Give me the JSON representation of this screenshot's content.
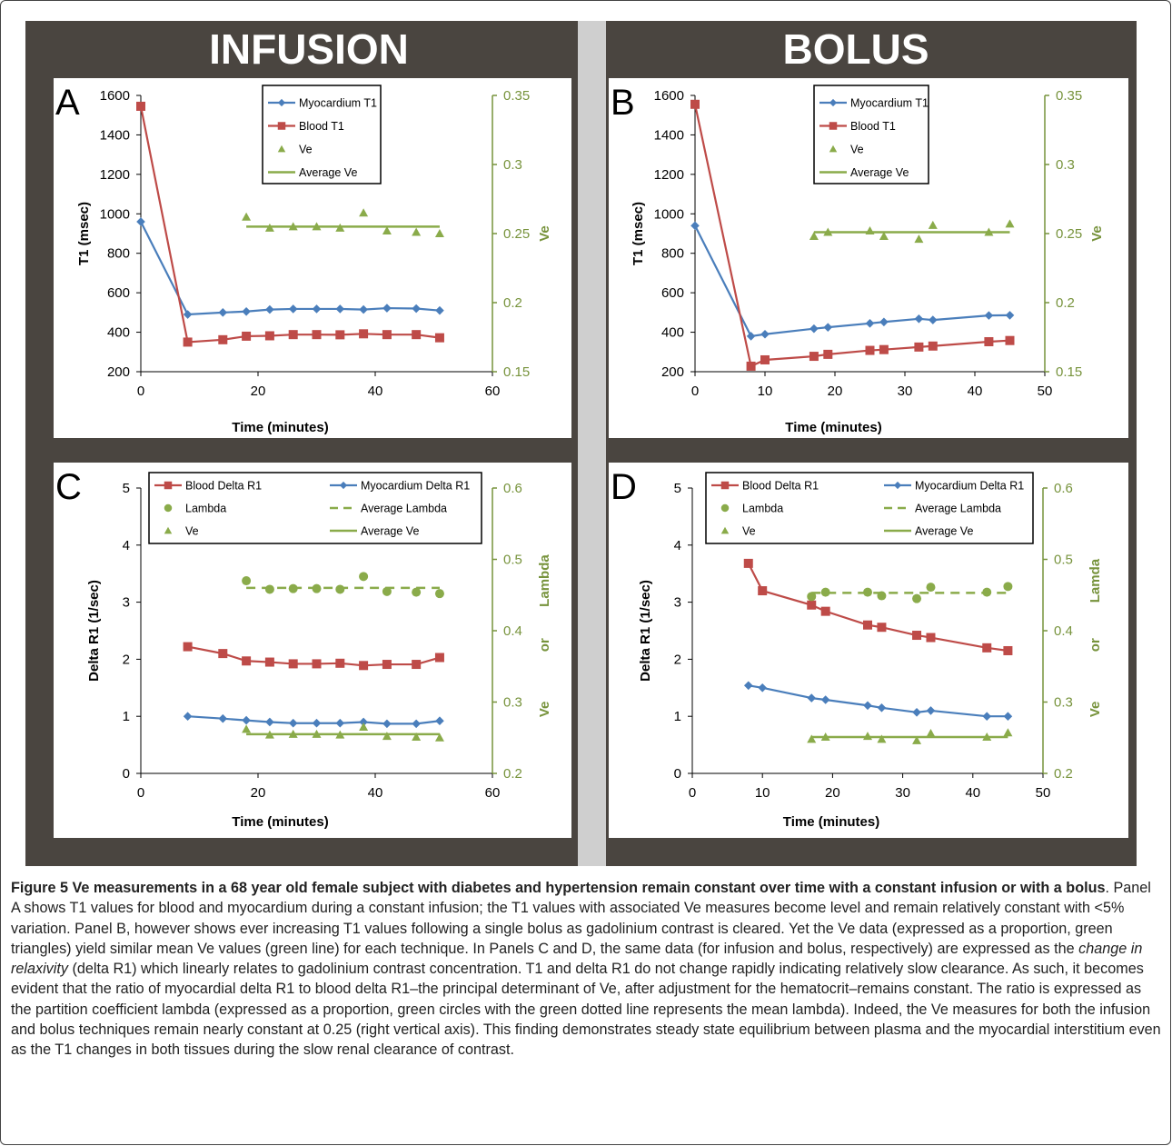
{
  "headers": {
    "left": "INFUSION",
    "right": "BOLUS"
  },
  "colors": {
    "frame": "#4a4540",
    "divider": "#cfcfcf",
    "blue": "#4a7ebb",
    "red": "#be4b48",
    "green": "#8aab4a",
    "greenAxis": "#77933c"
  },
  "caption": {
    "bold": "Figure 5 Ve measurements in a 68 year old female subject with diabetes and hypertension remain constant over time with a constant infusion or with a bolus",
    "part1": ". Panel A shows T1 values for blood and myocardium during a constant infusion; the T1 values with associated Ve measures become level and remain relatively constant with <5% variation. Panel B, however shows ever increasing T1 values following a single bolus as gadolinium contrast is cleared. Yet the Ve data (expressed as a proportion, green triangles) yield similar mean Ve values (green line) for each technique. In Panels C and D, the same data (for infusion and bolus, respectively) are expressed as the ",
    "italic": "change in relaxivity",
    "part2": " (delta R1) which linearly relates to gadolinium contrast concentration. T1 and delta R1 do not change rapidly indicating relatively slow clearance. As such, it becomes evident that the ratio of myocardial delta R1 to blood delta R1–the principal determinant of Ve, after adjustment for the hematocrit–remains constant. The ratio is expressed as the partition coefficient lambda (expressed as a proportion, green circles with the green dotted line represents the mean lambda). Indeed, the Ve measures for both the infusion and bolus techniques remain nearly constant at 0.25 (right vertical axis). This finding demonstrates steady state equilibrium between plasma and the myocardial interstitium even as the T1 changes in both tissues during the slow renal clearance of contrast."
  },
  "chart_data": [
    {
      "panel": "A",
      "type": "line",
      "xlabel": "Time (minutes)",
      "ylabel": "T1 (msec)",
      "y2label": [
        "Ve"
      ],
      "xlim": [
        0,
        60
      ],
      "xticks": [
        0,
        20,
        40,
        60
      ],
      "ylim": [
        200,
        1600
      ],
      "yticks": [
        200,
        400,
        600,
        800,
        1000,
        1200,
        1400,
        1600
      ],
      "y2lim": [
        0.15,
        0.35
      ],
      "y2ticks": [
        "0.15",
        "0.2",
        "0.25",
        "0.3",
        "0.35"
      ],
      "legend": "top-center",
      "series": [
        {
          "name": "Myocardium T1",
          "kind": "line-diamond",
          "color": "blue",
          "axis": "left",
          "x": [
            0,
            8,
            14,
            18,
            22,
            26,
            30,
            34,
            38,
            42,
            47,
            51
          ],
          "y": [
            960,
            490,
            500,
            505,
            515,
            518,
            518,
            518,
            515,
            522,
            520,
            510
          ]
        },
        {
          "name": "Blood T1",
          "kind": "line-square",
          "color": "red",
          "axis": "left",
          "x": [
            0,
            8,
            14,
            18,
            22,
            26,
            30,
            34,
            38,
            42,
            47,
            51
          ],
          "y": [
            1545,
            350,
            362,
            380,
            382,
            388,
            388,
            387,
            392,
            388,
            388,
            372
          ]
        },
        {
          "name": "Ve",
          "kind": "triangle",
          "color": "green",
          "axis": "right",
          "x": [
            18,
            22,
            26,
            30,
            34,
            38,
            42,
            47,
            51
          ],
          "y": [
            0.262,
            0.254,
            0.255,
            0.255,
            0.254,
            0.265,
            0.252,
            0.251,
            0.25
          ]
        },
        {
          "name": "Average Ve",
          "kind": "solid",
          "color": "green",
          "axis": "right",
          "x": [
            18,
            51
          ],
          "y": [
            0.255,
            0.255
          ]
        }
      ]
    },
    {
      "panel": "B",
      "type": "line",
      "xlabel": "Time (minutes)",
      "ylabel": "T1 (msec)",
      "y2label": [
        "Ve"
      ],
      "xlim": [
        0,
        50
      ],
      "xticks": [
        0,
        10,
        20,
        30,
        40,
        50
      ],
      "ylim": [
        200,
        1600
      ],
      "yticks": [
        200,
        400,
        600,
        800,
        1000,
        1200,
        1400,
        1600
      ],
      "y2lim": [
        0.15,
        0.35
      ],
      "y2ticks": [
        "0.15",
        "0.2",
        "0.25",
        "0.3",
        "0.35"
      ],
      "legend": "top-center",
      "series": [
        {
          "name": "Myocardium T1",
          "kind": "line-diamond",
          "color": "blue",
          "axis": "left",
          "x": [
            0,
            8,
            10,
            17,
            19,
            25,
            27,
            32,
            34,
            42,
            45
          ],
          "y": [
            940,
            380,
            390,
            418,
            425,
            445,
            452,
            468,
            462,
            485,
            486
          ]
        },
        {
          "name": "Blood T1",
          "kind": "line-square",
          "color": "red",
          "axis": "left",
          "x": [
            0,
            8,
            10,
            17,
            19,
            25,
            27,
            32,
            34,
            42,
            45
          ],
          "y": [
            1555,
            228,
            260,
            278,
            288,
            308,
            312,
            325,
            330,
            352,
            358
          ]
        },
        {
          "name": "Ve",
          "kind": "triangle",
          "color": "green",
          "axis": "right",
          "x": [
            17,
            19,
            25,
            27,
            32,
            34,
            42,
            45
          ],
          "y": [
            0.248,
            0.251,
            0.252,
            0.248,
            0.246,
            0.256,
            0.251,
            0.257
          ]
        },
        {
          "name": "Average Ve",
          "kind": "solid",
          "color": "green",
          "axis": "right",
          "x": [
            17,
            45
          ],
          "y": [
            0.251,
            0.251
          ]
        }
      ]
    },
    {
      "panel": "C",
      "type": "line",
      "xlabel": "Time (minutes)",
      "ylabel": "Delta R1 (1/sec)",
      "y2label": [
        "Lambda",
        "or",
        "Ve"
      ],
      "xlim": [
        0,
        60
      ],
      "xticks": [
        0,
        20,
        40,
        60
      ],
      "ylim": [
        0,
        5
      ],
      "yticks": [
        0,
        1,
        2,
        3,
        4,
        5
      ],
      "y2lim": [
        0.2,
        0.6
      ],
      "y2ticks": [
        "0.2",
        "0.3",
        "0.4",
        "0.5",
        "0.6"
      ],
      "legend": "top",
      "series": [
        {
          "name": "Blood Delta R1",
          "kind": "line-square",
          "color": "red",
          "axis": "left",
          "x": [
            8,
            14,
            18,
            22,
            26,
            30,
            34,
            38,
            42,
            47,
            51
          ],
          "y": [
            2.22,
            2.1,
            1.97,
            1.95,
            1.92,
            1.92,
            1.93,
            1.89,
            1.91,
            1.91,
            2.03
          ]
        },
        {
          "name": "Myocardium Delta R1",
          "kind": "line-diamond",
          "color": "blue",
          "axis": "left",
          "x": [
            8,
            14,
            18,
            22,
            26,
            30,
            34,
            38,
            42,
            47,
            51
          ],
          "y": [
            1.0,
            0.96,
            0.93,
            0.9,
            0.88,
            0.88,
            0.88,
            0.9,
            0.87,
            0.87,
            0.92
          ]
        },
        {
          "name": "Lambda",
          "kind": "circle",
          "color": "green",
          "axis": "right",
          "x": [
            18,
            22,
            26,
            30,
            34,
            38,
            42,
            47,
            51
          ],
          "y": [
            0.47,
            0.458,
            0.459,
            0.459,
            0.458,
            0.476,
            0.455,
            0.454,
            0.452
          ]
        },
        {
          "name": "Average Lambda",
          "kind": "dashed",
          "color": "green",
          "axis": "right",
          "x": [
            18,
            51
          ],
          "y": [
            0.46,
            0.46
          ]
        },
        {
          "name": "Ve",
          "kind": "triangle",
          "color": "green",
          "axis": "right",
          "x": [
            18,
            22,
            26,
            30,
            34,
            38,
            42,
            47,
            51
          ],
          "y": [
            0.262,
            0.254,
            0.255,
            0.255,
            0.254,
            0.265,
            0.252,
            0.251,
            0.25
          ]
        },
        {
          "name": "Average Ve",
          "kind": "solid",
          "color": "green",
          "axis": "right",
          "x": [
            18,
            51
          ],
          "y": [
            0.255,
            0.255
          ]
        }
      ]
    },
    {
      "panel": "D",
      "type": "line",
      "xlabel": "Time (minutes)",
      "ylabel": "Delta R1 (1/sec)",
      "y2label": [
        "Lamda",
        "or",
        "Ve"
      ],
      "xlim": [
        0,
        50
      ],
      "xticks": [
        0,
        10,
        20,
        30,
        40,
        50
      ],
      "ylim": [
        0,
        5
      ],
      "yticks": [
        0,
        1,
        2,
        3,
        4,
        5
      ],
      "y2lim": [
        0.2,
        0.6
      ],
      "y2ticks": [
        "0.2",
        "0.3",
        "0.4",
        "0.5",
        "0.6"
      ],
      "legend": "top",
      "series": [
        {
          "name": "Blood Delta R1",
          "kind": "line-square",
          "color": "red",
          "axis": "left",
          "x": [
            8,
            10,
            17,
            19,
            25,
            27,
            32,
            34,
            42,
            45
          ],
          "y": [
            3.68,
            3.2,
            2.95,
            2.84,
            2.6,
            2.56,
            2.42,
            2.38,
            2.2,
            2.15
          ]
        },
        {
          "name": "Myocardium Delta R1",
          "kind": "line-diamond",
          "color": "blue",
          "axis": "left",
          "x": [
            8,
            10,
            17,
            19,
            25,
            27,
            32,
            34,
            42,
            45
          ],
          "y": [
            1.54,
            1.5,
            1.32,
            1.29,
            1.19,
            1.15,
            1.07,
            1.1,
            1.0,
            1.0
          ]
        },
        {
          "name": "Lambda",
          "kind": "circle",
          "color": "green",
          "axis": "right",
          "x": [
            17,
            19,
            25,
            27,
            32,
            34,
            42,
            45
          ],
          "y": [
            0.448,
            0.454,
            0.454,
            0.449,
            0.445,
            0.461,
            0.454,
            0.462
          ]
        },
        {
          "name": "Average Lambda",
          "kind": "dashed",
          "color": "green",
          "axis": "right",
          "x": [
            17,
            45
          ],
          "y": [
            0.453,
            0.453
          ]
        },
        {
          "name": "Ve",
          "kind": "triangle",
          "color": "green",
          "axis": "right",
          "x": [
            17,
            19,
            25,
            27,
            32,
            34,
            42,
            45
          ],
          "y": [
            0.248,
            0.251,
            0.252,
            0.248,
            0.246,
            0.256,
            0.251,
            0.257
          ]
        },
        {
          "name": "Average Ve",
          "kind": "solid",
          "color": "green",
          "axis": "right",
          "x": [
            17,
            45
          ],
          "y": [
            0.251,
            0.251
          ]
        }
      ]
    }
  ]
}
